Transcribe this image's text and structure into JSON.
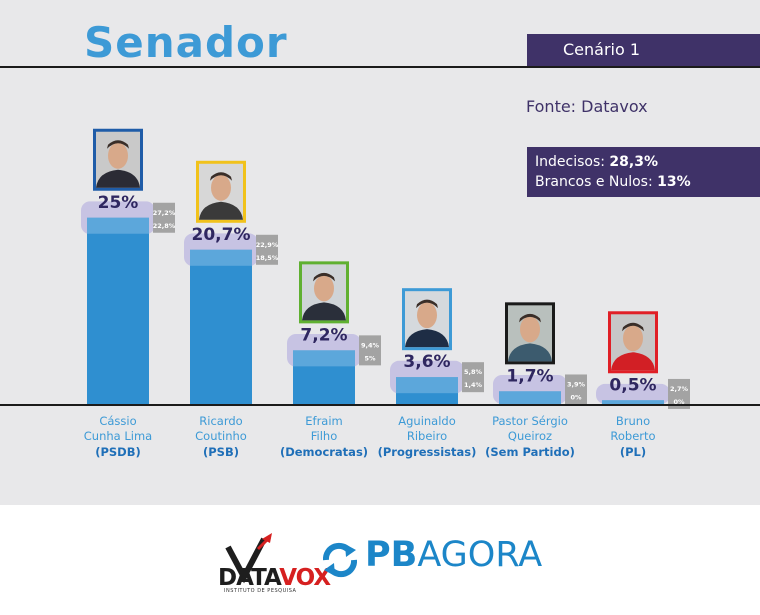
{
  "header": {
    "title": "Senador",
    "scenario": "Cenário 1",
    "source": "Fonte: Datavox"
  },
  "summary": {
    "undecided_label": "Indecisos:",
    "undecided_value": "28,3%",
    "blank_label": "Brancos e Nulos:",
    "blank_value": "13%"
  },
  "colors": {
    "bar": "#2f8fd0",
    "band": "#8a7fd6",
    "title": "#3d9ad6",
    "box": "#3f3268"
  },
  "chart_data": {
    "type": "bar",
    "title": "Senador",
    "categories": [
      "Cássio Cunha Lima",
      "Ricardo Coutinho",
      "Efraim Filho",
      "Aguinaldo Ribeiro",
      "Pastor Sérgio Queiroz",
      "Bruno Roberto"
    ],
    "values": [
      25,
      20.7,
      7.2,
      3.6,
      1.7,
      0.5
    ],
    "value_labels": [
      "25%",
      "20,7%",
      "7,2%",
      "3,6%",
      "1,7%",
      "0,5%"
    ],
    "ranges": [
      [
        22.8,
        27.2
      ],
      [
        18.5,
        22.9
      ],
      [
        5,
        9.4
      ],
      [
        1.4,
        5.8
      ],
      [
        0,
        3.9
      ],
      [
        0,
        2.7
      ]
    ],
    "range_labels": [
      [
        "27,2%",
        "22,8%"
      ],
      [
        "22,9%",
        "18,5%"
      ],
      [
        "9,4%",
        "5%"
      ],
      [
        "5,8%",
        "1,4%"
      ],
      [
        "3,9%",
        "0%"
      ],
      [
        "2,7%",
        "0%"
      ]
    ],
    "candidates": [
      {
        "name_lines": [
          "Cássio",
          "Cunha Lima"
        ],
        "party": "(PSDB)",
        "frame_color": "#1f5ca8",
        "photo_bg": "#c9c9c9",
        "shirt": "#2b2b35"
      },
      {
        "name_lines": [
          "Ricardo",
          "Coutinho"
        ],
        "party": "(PSB)",
        "frame_color": "#f1c21b",
        "photo_bg": "#d7d7d7",
        "shirt": "#3a3a3a"
      },
      {
        "name_lines": [
          "Efraim",
          "Filho"
        ],
        "party": "(Democratas)",
        "frame_color": "#5fb031",
        "photo_bg": "#cfd4d8",
        "shirt": "#2a2f3a"
      },
      {
        "name_lines": [
          "Aguinaldo",
          "Ribeiro"
        ],
        "party": "(Progressistas)",
        "frame_color": "#3d9ad6",
        "photo_bg": "#d5d9dd",
        "shirt": "#1e2d45"
      },
      {
        "name_lines": [
          "Pastor Sérgio",
          "Queiroz"
        ],
        "party": "(Sem Partido)",
        "frame_color": "#1a1a1a",
        "photo_bg": "#b9c0bd",
        "shirt": "#3c5b6e"
      },
      {
        "name_lines": [
          "Bruno",
          "Roberto"
        ],
        "party": "(PL)",
        "frame_color": "#e01f26",
        "photo_bg": "#c7c7c7",
        "shirt": "#d21f25"
      }
    ]
  },
  "footer": {
    "datavox_left": "DATA",
    "datavox_right": "VOX",
    "datavox_tagline": "INSTITUTO DE PESQUISA",
    "pbagora_bold": "PB",
    "pbagora_rest": "AGORA"
  }
}
